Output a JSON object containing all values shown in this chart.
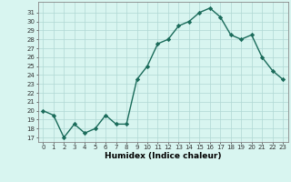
{
  "x": [
    0,
    1,
    2,
    3,
    4,
    5,
    6,
    7,
    8,
    9,
    10,
    11,
    12,
    13,
    14,
    15,
    16,
    17,
    18,
    19,
    20,
    21,
    22,
    23
  ],
  "y": [
    20,
    19.5,
    17,
    18.5,
    17.5,
    18,
    19.5,
    18.5,
    18.5,
    23.5,
    25,
    27.5,
    28,
    29.5,
    30,
    31,
    31.5,
    30.5,
    28.5,
    28,
    28.5,
    26,
    24.5,
    23.5
  ],
  "line_color": "#1a6b5a",
  "marker": "D",
  "markersize": 2.2,
  "linewidth": 1.0,
  "bg_color": "#d8f5f0",
  "grid_color": "#b0d8d4",
  "xlabel": "Humidex (Indice chaleur)",
  "xlim": [
    -0.5,
    23.5
  ],
  "ylim": [
    16.5,
    32.2
  ],
  "yticks": [
    17,
    18,
    19,
    20,
    21,
    22,
    23,
    24,
    25,
    26,
    27,
    28,
    29,
    30,
    31
  ],
  "xticks": [
    0,
    1,
    2,
    3,
    4,
    5,
    6,
    7,
    8,
    9,
    10,
    11,
    12,
    13,
    14,
    15,
    16,
    17,
    18,
    19,
    20,
    21,
    22,
    23
  ],
  "tick_fontsize": 5.0,
  "xlabel_fontsize": 6.5,
  "spine_color": "#888888"
}
